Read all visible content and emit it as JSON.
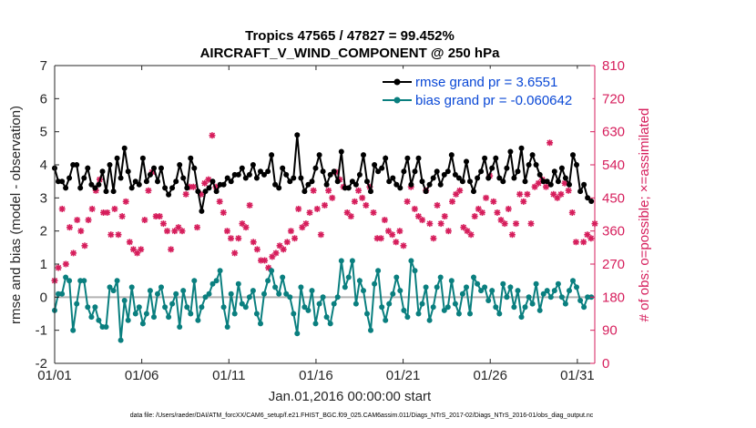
{
  "chart_data": {
    "type": "line",
    "title_line1": "Tropics 47565 / 47827 = 99.452%",
    "title_line2": "AIRCRAFT_V_WIND_COMPONENT @ 250 hPa",
    "xlabel": "Jan.01,2016 00:00:00 start",
    "ylabel": "rmse and bias (model - observation)",
    "ylabel_right": "# of obs: o=possible; ×=assimilated",
    "footer": "data file: /Users/raeder/DAI/ATM_forcXX/CAM6_setup/f.e21.FHIST_BGC.f09_025.CAM6assim.011/Diags_NTrS_2017-02/Diags_NTrS_2016-01/obs_diag_output.nc",
    "x_tick_labels": [
      "01/01",
      "01/06",
      "01/11",
      "01/16",
      "01/21",
      "01/26",
      "01/31"
    ],
    "x_tick_days": [
      1,
      6,
      11,
      16,
      21,
      26,
      31
    ],
    "xlim": [
      1,
      32
    ],
    "ylim": [
      -2,
      7
    ],
    "y_tick_labels": [
      "-2",
      "-1",
      "0",
      "1",
      "2",
      "3",
      "4",
      "5",
      "6",
      "7"
    ],
    "ylim_right": [
      0,
      810
    ],
    "y_right_tick_labels": [
      "0",
      "90",
      "180",
      "270",
      "360",
      "450",
      "540",
      "630",
      "720",
      "810"
    ],
    "zero_line": 0,
    "series": [
      {
        "name": "rmse grand pr = 3.6551",
        "color": "#000000",
        "values": [
          3.9,
          3.5,
          3.5,
          3.3,
          3.6,
          4.0,
          4.0,
          3.3,
          3.6,
          3.9,
          3.4,
          3.3,
          3.4,
          3.8,
          3.2,
          4.0,
          3.2,
          4.2,
          3.6,
          4.5,
          3.8,
          3.3,
          3.5,
          3.4,
          4.2,
          3.5,
          3.7,
          3.9,
          3.5,
          3.9,
          3.3,
          3.1,
          3.3,
          3.5,
          4.0,
          3.6,
          3.3,
          4.2,
          3.9,
          3.2,
          2.6,
          3.2,
          3.3,
          3.5,
          3.2,
          3.4,
          3.4,
          3.6,
          3.5,
          3.7,
          3.7,
          3.9,
          3.6,
          3.7,
          4.0,
          3.6,
          3.8,
          3.7,
          3.8,
          4.3,
          3.4,
          3.3,
          3.9,
          3.7,
          3.5,
          3.6,
          4.9,
          3.6,
          3.2,
          3.4,
          3.5,
          3.9,
          4.3,
          3.8,
          3.4,
          3.7,
          3.8,
          3.5,
          4.4,
          3.3,
          3.3,
          3.5,
          3.4,
          3.7,
          4.3,
          3.5,
          3.2,
          4.0,
          3.8,
          3.9,
          4.2,
          3.5,
          3.6,
          3.4,
          3.3,
          3.8,
          4.2,
          3.4,
          3.8,
          4.2,
          3.5,
          3.2,
          3.4,
          3.6,
          3.8,
          3.4,
          3.7,
          3.8,
          4.3,
          3.7,
          3.6,
          3.5,
          4.1,
          3.5,
          3.2,
          3.6,
          3.8,
          4.2,
          3.6,
          3.9,
          4.2,
          3.6,
          3.5,
          3.9,
          4.4,
          3.6,
          3.8,
          4.5,
          3.5,
          4.0,
          4.3,
          4.0,
          3.7,
          3.5,
          3.5,
          3.4,
          3.8,
          3.5,
          3.9,
          3.6,
          3.4,
          4.3,
          4.0,
          3.2,
          3.4,
          3.0,
          2.9
        ]
      },
      {
        "name": "bias grand pr = -0.060642",
        "color": "#0a7f7f",
        "values": [
          -0.4,
          0.1,
          0.1,
          0.6,
          0.5,
          -1.0,
          -0.2,
          0.5,
          0.5,
          -0.3,
          -0.6,
          -0.3,
          -0.7,
          -0.9,
          -0.9,
          0.3,
          0.2,
          0.5,
          -1.3,
          -0.1,
          -0.7,
          0.3,
          -0.5,
          -0.3,
          -0.8,
          -0.5,
          0.2,
          -0.6,
          0.1,
          0.3,
          -0.3,
          -0.6,
          -0.2,
          0.1,
          -0.9,
          0.2,
          -0.3,
          -0.5,
          0.5,
          -0.7,
          -0.3,
          0.0,
          0.1,
          0.4,
          0.5,
          0.8,
          -0.3,
          -0.9,
          0.1,
          -0.5,
          0.4,
          -0.2,
          -0.3,
          0.0,
          0.2,
          -0.5,
          -0.8,
          0.1,
          0.5,
          0.8,
          0.3,
          0.1,
          0.6,
          0.1,
          0.0,
          -0.5,
          -1.1,
          0.3,
          -0.3,
          -0.4,
          0.2,
          -0.8,
          -0.2,
          0.0,
          -0.6,
          -0.8,
          -0.2,
          0.0,
          1.1,
          0.3,
          0.6,
          1.1,
          -0.2,
          0.5,
          0.2,
          -0.5,
          -1.0,
          0.4,
          0.8,
          -0.3,
          -0.7,
          -0.2,
          0.1,
          0.6,
          0.2,
          -0.4,
          -0.6,
          1.1,
          0.8,
          -0.5,
          -0.2,
          0.3,
          -0.7,
          -0.3,
          0.3,
          0.6,
          -0.4,
          -0.3,
          0.5,
          -0.2,
          -0.5,
          0.1,
          0.3,
          -0.5,
          0.6,
          0.4,
          0.2,
          0.3,
          -0.1,
          0.2,
          -0.3,
          -0.5,
          0.4,
          0.0,
          0.3,
          -0.3,
          0.2,
          -0.6,
          -0.3,
          0.0,
          -0.2,
          0.4,
          -0.4,
          0.1,
          0.2,
          0.0,
          0.2,
          0.4,
          0.0,
          -0.2,
          0.2,
          0.5,
          0.3,
          -0.1,
          -0.3,
          0.0,
          0.0
        ]
      }
    ],
    "obs_assimilated": [
      225,
      260,
      420,
      270,
      370,
      300,
      390,
      360,
      320,
      390,
      420,
      470,
      500,
      410,
      410,
      350,
      420,
      350,
      400,
      440,
      330,
      310,
      300,
      310,
      390,
      470,
      520,
      400,
      400,
      380,
      360,
      310,
      360,
      370,
      360,
      460,
      480,
      480,
      370,
      460,
      490,
      500,
      620,
      480,
      440,
      410,
      360,
      340,
      300,
      340,
      380,
      370,
      430,
      330,
      310,
      280,
      280,
      260,
      290,
      300,
      320,
      310,
      330,
      360,
      340,
      420,
      370,
      380,
      410,
      470,
      420,
      350,
      430,
      470,
      450,
      520,
      500,
      480,
      410,
      400,
      440,
      470,
      450,
      430,
      480,
      410,
      340,
      340,
      390,
      360,
      350,
      330,
      360,
      320,
      440,
      480,
      420,
      400,
      390,
      470,
      380,
      340,
      430,
      380,
      400,
      360,
      440,
      460,
      470,
      370,
      360,
      350,
      400,
      420,
      410,
      450,
      510,
      440,
      410,
      390,
      380,
      420,
      350,
      380,
      460,
      440,
      460,
      380,
      480,
      490,
      500,
      480,
      600,
      460,
      450,
      460,
      490,
      470,
      410,
      330,
      750,
      330,
      350,
      340,
      380
    ]
  },
  "legend": {
    "rmse": "rmse grand pr = 3.6551",
    "bias": "bias grand pr = -0.060642"
  }
}
